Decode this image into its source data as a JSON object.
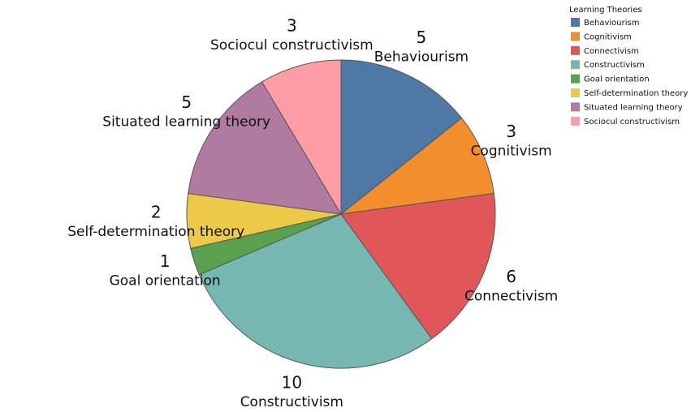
{
  "chart_data": {
    "type": "pie",
    "legend_title": "Learning Theories",
    "categories": [
      "Behaviourism",
      "Cognitivism",
      "Connectivism",
      "Constructivism",
      "Goal orientation",
      "Self-determination theory",
      "Situated learning theory",
      "Sociocul constructivism"
    ],
    "values": [
      5,
      3,
      6,
      10,
      1,
      2,
      5,
      3
    ],
    "colors": [
      "#4e79a7",
      "#f28e2b",
      "#e15759",
      "#76b7b2",
      "#59a14f",
      "#edc948",
      "#b07aa1",
      "#ff9da7"
    ],
    "legend": "top-right"
  }
}
